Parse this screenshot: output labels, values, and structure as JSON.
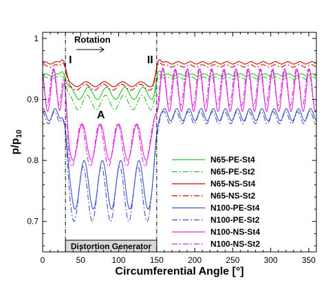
{
  "chart_data": {
    "type": "line",
    "xlabel": "Circumferential Angle [°]",
    "ylabel_main": "p/p",
    "ylabel_sub": "10",
    "xlim": [
      0,
      360
    ],
    "ylim": [
      0.65,
      1.01
    ],
    "xticks": [
      "0",
      "50",
      "100",
      "150",
      "200",
      "250",
      "300",
      "350"
    ],
    "yticks": [
      "0.7",
      "0.8",
      "0.9",
      "1"
    ],
    "grid": false,
    "legend_position": "lower-right",
    "distortion_start": 30,
    "distortion_end": 150,
    "annotations": {
      "rotation": "Rotation",
      "region_A": "A",
      "marker_I": "I",
      "marker_II": "II",
      "distortion_generator": "Distortion Generator"
    },
    "series": [
      {
        "name": "N65-PE-St4",
        "color": "#22c322",
        "dash": "solid",
        "base": 0.94,
        "low": 0.91,
        "amp": 0.002,
        "lowamp": 0.01
      },
      {
        "name": "N65-PE-St2",
        "color": "#22c322",
        "dash": "dashdot",
        "base": 0.935,
        "low": 0.895,
        "amp": 0.002,
        "lowamp": 0.012
      },
      {
        "name": "N65-NS-St4",
        "color": "#c80000",
        "dash": "solid",
        "base": 0.96,
        "low": 0.925,
        "amp": 0.002,
        "lowamp": 0.004
      },
      {
        "name": "N65-NS-St2",
        "color": "#c80000",
        "dash": "dashdot",
        "base": 0.955,
        "low": 0.92,
        "amp": 0.002,
        "lowamp": 0.005
      },
      {
        "name": "N100-PE-St4",
        "color": "#3a4fc8",
        "dash": "solid",
        "base": 0.875,
        "low": 0.76,
        "amp": 0.01,
        "lowamp": 0.04
      },
      {
        "name": "N100-PE-St2",
        "color": "#3a4fc8",
        "dash": "dashdot",
        "base": 0.87,
        "low": 0.745,
        "amp": 0.01,
        "lowamp": 0.045
      },
      {
        "name": "N100-NS-St4",
        "color": "#e020e0",
        "dash": "solid",
        "base": 0.915,
        "low": 0.83,
        "amp": 0.035,
        "lowamp": 0.03
      },
      {
        "name": "N100-NS-St2",
        "color": "#e020e0",
        "dash": "dashdot",
        "base": 0.92,
        "low": 0.825,
        "amp": 0.03,
        "lowamp": 0.035
      }
    ]
  }
}
